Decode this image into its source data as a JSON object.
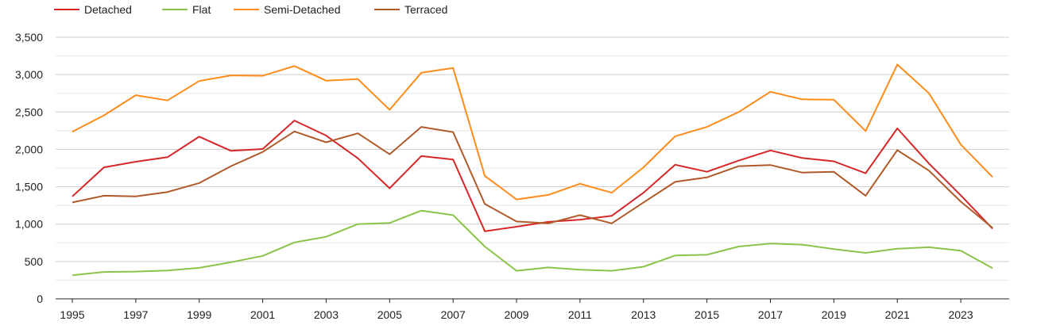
{
  "chart_data": {
    "type": "line",
    "title": "",
    "xlabel": "",
    "ylabel": "",
    "x": [
      1995,
      1996,
      1997,
      1998,
      1999,
      2000,
      2001,
      2002,
      2003,
      2004,
      2005,
      2006,
      2007,
      2008,
      2009,
      2010,
      2011,
      2012,
      2013,
      2014,
      2015,
      2016,
      2017,
      2018,
      2019,
      2020,
      2021,
      2022,
      2023,
      2024
    ],
    "x_tick_labels": [
      "1995",
      "1997",
      "1999",
      "2001",
      "2003",
      "2005",
      "2007",
      "2009",
      "2011",
      "2013",
      "2015",
      "2017",
      "2019",
      "2021",
      "2023"
    ],
    "y_tick_labels": [
      "0",
      "500",
      "1,000",
      "1,500",
      "2,000",
      "2,500",
      "3,000",
      "3,500"
    ],
    "y_ticks": [
      0,
      500,
      1000,
      1500,
      2000,
      2500,
      3000,
      3500
    ],
    "ylim": [
      0,
      3500
    ],
    "grid": true,
    "legend_position": "top-left",
    "series": [
      {
        "name": "Detached",
        "color": "#d62728",
        "values": [
          1370,
          1760,
          1835,
          1895,
          2170,
          1980,
          2005,
          2385,
          2185,
          1880,
          1480,
          1910,
          1865,
          905,
          965,
          1030,
          1060,
          1110,
          1420,
          1795,
          1700,
          1850,
          1985,
          1885,
          1840,
          1680,
          2280,
          1810,
          1385,
          940
        ]
      },
      {
        "name": "Flat",
        "color": "#8bc34a",
        "values": [
          315,
          360,
          365,
          380,
          415,
          490,
          575,
          755,
          830,
          1000,
          1015,
          1180,
          1120,
          700,
          375,
          420,
          390,
          375,
          430,
          580,
          590,
          700,
          740,
          725,
          665,
          615,
          670,
          690,
          645,
          410
        ]
      },
      {
        "name": "Semi-Detached",
        "color": "#ff8c1a",
        "values": [
          2235,
          2455,
          2725,
          2655,
          2915,
          2990,
          2985,
          3115,
          2920,
          2940,
          2530,
          3025,
          3090,
          1645,
          1330,
          1390,
          1540,
          1420,
          1760,
          2175,
          2300,
          2500,
          2770,
          2670,
          2665,
          2245,
          3135,
          2750,
          2065,
          1630
        ]
      },
      {
        "name": "Terraced",
        "color": "#b05a2a",
        "values": [
          1290,
          1380,
          1370,
          1430,
          1550,
          1775,
          1965,
          2240,
          2095,
          2215,
          1935,
          2300,
          2230,
          1270,
          1035,
          1010,
          1120,
          1010,
          1290,
          1565,
          1625,
          1775,
          1790,
          1690,
          1700,
          1380,
          1990,
          1715,
          1300,
          950
        ]
      }
    ]
  }
}
